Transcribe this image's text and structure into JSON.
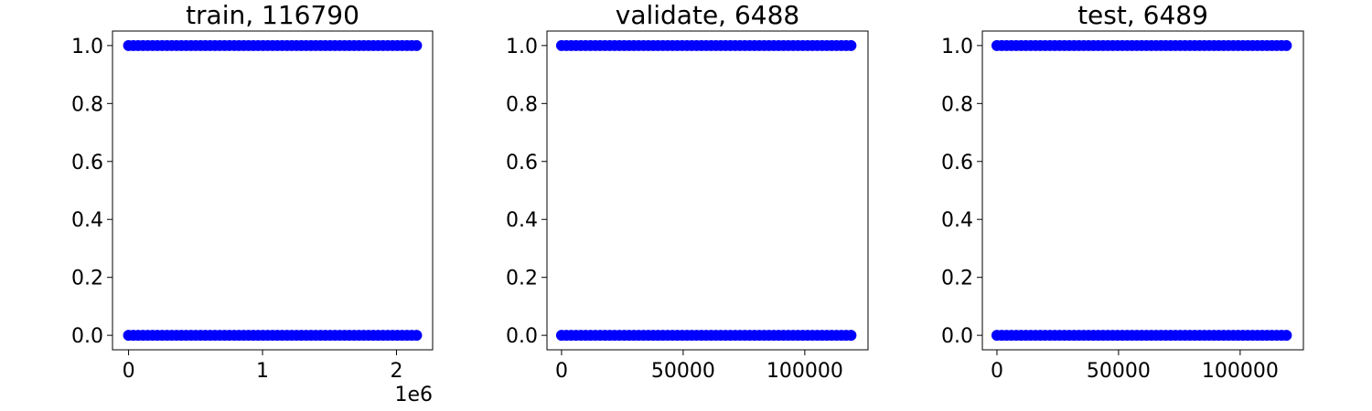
{
  "chart_data": [
    {
      "type": "scatter",
      "title": "train, 116790",
      "xlabel": "",
      "ylabel": "",
      "xlim": [
        -120000,
        2270000
      ],
      "ylim": [
        -0.05,
        1.05
      ],
      "xticks": [
        0,
        1000000,
        2000000
      ],
      "xtick_labels": [
        "0",
        "1",
        "2"
      ],
      "x_offset_label": "1e6",
      "yticks": [
        0.0,
        0.2,
        0.4,
        0.6,
        0.8,
        1.0
      ],
      "ytick_labels": [
        "0.0",
        "0.2",
        "0.4",
        "0.6",
        "0.8",
        "1.0"
      ],
      "marker_color": "#0000ff",
      "grid": false,
      "series": [
        {
          "x_range": [
            0,
            2150000
          ],
          "y": 1
        },
        {
          "x_range": [
            0,
            2150000
          ],
          "y": 0
        }
      ]
    },
    {
      "type": "scatter",
      "title": "validate, 6488",
      "xlabel": "",
      "ylabel": "",
      "xlim": [
        -6000,
        126000
      ],
      "ylim": [
        -0.05,
        1.05
      ],
      "xticks": [
        0,
        50000,
        100000
      ],
      "xtick_labels": [
        "0",
        "50000",
        "100000"
      ],
      "x_offset_label": "",
      "yticks": [
        0.0,
        0.2,
        0.4,
        0.6,
        0.8,
        1.0
      ],
      "ytick_labels": [
        "0.0",
        "0.2",
        "0.4",
        "0.6",
        "0.8",
        "1.0"
      ],
      "marker_color": "#0000ff",
      "grid": false,
      "series": [
        {
          "x_range": [
            0,
            119000
          ],
          "y": 1
        },
        {
          "x_range": [
            0,
            119000
          ],
          "y": 0
        }
      ]
    },
    {
      "type": "scatter",
      "title": "test, 6489",
      "xlabel": "",
      "ylabel": "",
      "xlim": [
        -6000,
        126000
      ],
      "ylim": [
        -0.05,
        1.05
      ],
      "xticks": [
        0,
        50000,
        100000
      ],
      "xtick_labels": [
        "0",
        "50000",
        "100000"
      ],
      "x_offset_label": "",
      "yticks": [
        0.0,
        0.2,
        0.4,
        0.6,
        0.8,
        1.0
      ],
      "ytick_labels": [
        "0.0",
        "0.2",
        "0.4",
        "0.6",
        "0.8",
        "1.0"
      ],
      "marker_color": "#0000ff",
      "grid": false,
      "series": [
        {
          "x_range": [
            0,
            119000
          ],
          "y": 1
        },
        {
          "x_range": [
            0,
            119000
          ],
          "y": 0
        }
      ]
    }
  ]
}
